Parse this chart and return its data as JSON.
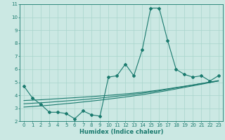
{
  "xlabel": "Humidex (Indice chaleur)",
  "bg_color": "#cbe8e3",
  "line_color": "#1a7a6e",
  "grid_color": "#a8d5cc",
  "x_data": [
    0,
    1,
    2,
    3,
    4,
    5,
    6,
    7,
    8,
    9,
    10,
    11,
    12,
    13,
    14,
    15,
    16,
    17,
    18,
    19,
    20,
    21,
    22,
    23
  ],
  "y_main": [
    4.7,
    3.8,
    3.3,
    2.7,
    2.7,
    2.6,
    2.2,
    2.8,
    2.5,
    2.4,
    5.4,
    5.5,
    6.4,
    5.5,
    7.5,
    10.7,
    10.7,
    8.2,
    6.0,
    5.6,
    5.4,
    5.5,
    5.1,
    5.5
  ],
  "y_line1": [
    3.6,
    3.63,
    3.66,
    3.7,
    3.74,
    3.78,
    3.82,
    3.86,
    3.9,
    3.95,
    4.0,
    4.05,
    4.11,
    4.17,
    4.24,
    4.32,
    4.4,
    4.5,
    4.6,
    4.7,
    4.8,
    4.9,
    5.0,
    5.1
  ],
  "y_line2": [
    3.35,
    3.39,
    3.43,
    3.47,
    3.52,
    3.57,
    3.62,
    3.67,
    3.73,
    3.79,
    3.86,
    3.93,
    4.0,
    4.08,
    4.16,
    4.25,
    4.35,
    4.46,
    4.57,
    4.68,
    4.79,
    4.91,
    5.02,
    5.13
  ],
  "y_line3": [
    3.1,
    3.14,
    3.19,
    3.24,
    3.3,
    3.36,
    3.42,
    3.49,
    3.56,
    3.63,
    3.71,
    3.79,
    3.87,
    3.96,
    4.05,
    4.15,
    4.26,
    4.37,
    4.49,
    4.61,
    4.73,
    4.85,
    4.98,
    5.1
  ],
  "ylim": [
    2,
    11
  ],
  "xlim": [
    -0.5,
    23.5
  ],
  "yticks": [
    2,
    3,
    4,
    5,
    6,
    7,
    8,
    9,
    10,
    11
  ],
  "xticks": [
    0,
    1,
    2,
    3,
    4,
    5,
    6,
    7,
    8,
    9,
    10,
    11,
    12,
    13,
    14,
    15,
    16,
    17,
    18,
    19,
    20,
    21,
    22,
    23
  ],
  "xlabel_fontsize": 6.0,
  "tick_fontsize": 5.0,
  "linewidth": 0.8,
  "markersize": 2.0
}
